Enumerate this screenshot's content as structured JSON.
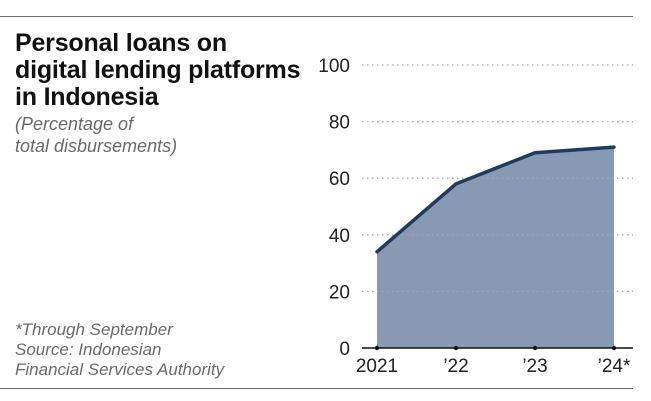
{
  "header": {
    "title_lines": [
      "Personal loans on",
      "digital lending platforms",
      "in Indonesia"
    ],
    "subtitle_lines": [
      "(Percentage of",
      "total disbursements)"
    ]
  },
  "footer": {
    "note": "*Through September",
    "source_lines": [
      "Source: Indonesian",
      "Financial Services Authority"
    ]
  },
  "colors": {
    "line": "#1f3b5e",
    "area": "#8799b3",
    "grid": "#a8a8a8",
    "axis": "#111111"
  },
  "chart_data": {
    "type": "area",
    "title": "Personal loans on digital lending platforms in Indonesia",
    "subtitle": "(Percentage of total disbursements)",
    "categories": [
      "2021",
      "’22",
      "’23",
      "’24*"
    ],
    "values": [
      34,
      58,
      69,
      71
    ],
    "ylim": [
      0,
      100
    ],
    "yticks": [
      0,
      20,
      40,
      60,
      80,
      100
    ],
    "grid": true,
    "grid_style": "dotted horizontal",
    "xlabel": "",
    "ylabel": ""
  }
}
